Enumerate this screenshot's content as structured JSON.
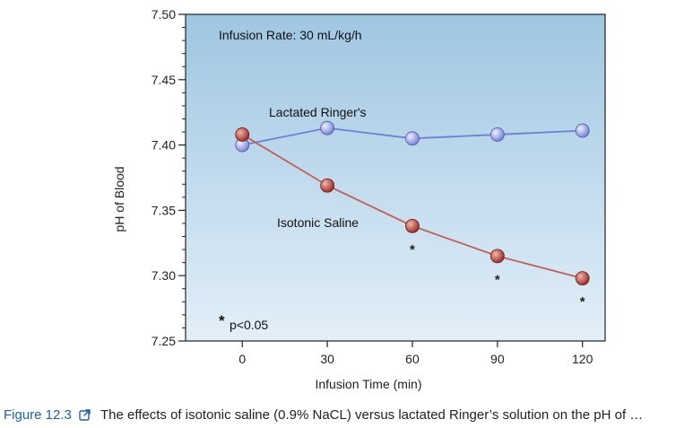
{
  "colors": {
    "plot_bg_top": "#9fc6e2",
    "plot_bg_bottom": "#e3eff8",
    "lr_line": "#6f7ed6",
    "lr_marker": "#b9c0f0",
    "saline_line": "#c0605a",
    "saline_marker": "#a8332f",
    "caption_link": "#1f5fa8"
  },
  "chart_data": {
    "type": "line",
    "title": "Infusion Rate: 30 mL/kg/h",
    "xlabel": "Infusion Time (min)",
    "ylabel": "pH of Blood",
    "x": [
      0,
      30,
      60,
      90,
      120
    ],
    "xlim": [
      -20,
      128
    ],
    "ylim": [
      7.25,
      7.5
    ],
    "xticks": [
      "0",
      "30",
      "60",
      "90",
      "120"
    ],
    "yticks": [
      "7.25",
      "7.30",
      "7.35",
      "7.40",
      "7.45",
      "7.50"
    ],
    "grid": false,
    "series": [
      {
        "name": "Lactated Ringer's",
        "values": [
          7.4,
          7.413,
          7.405,
          7.408,
          7.411
        ],
        "significant": [
          false,
          false,
          false,
          false,
          false
        ]
      },
      {
        "name": "Isotonic Saline",
        "values": [
          7.408,
          7.369,
          7.338,
          7.315,
          7.298
        ],
        "significant": [
          false,
          false,
          true,
          true,
          true
        ]
      }
    ],
    "significance_marker": "*",
    "annotation": "p<0.05"
  },
  "caption": {
    "label": "Figure 12.3",
    "icon": "external-link-icon",
    "text": "The effects of isotonic saline (0.9% NaCL) versus lactated Ringer’s solution on the pH of …"
  }
}
